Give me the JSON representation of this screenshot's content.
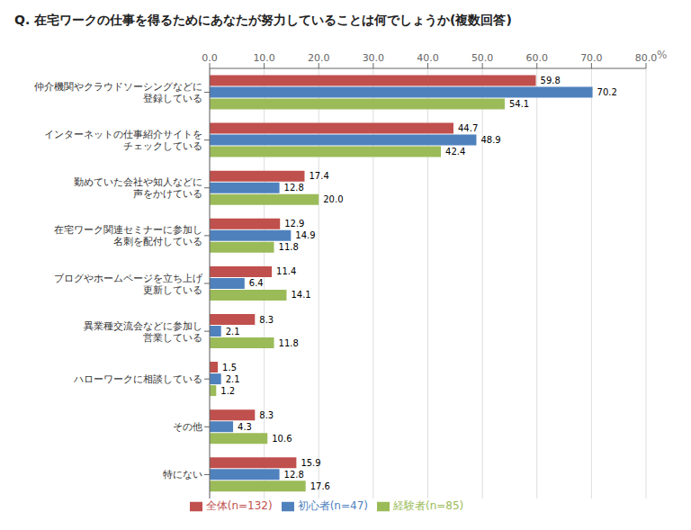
{
  "chart_data": {
    "type": "bar",
    "orientation": "horizontal",
    "title": "Q. 在宅ワークの仕事を得るためにあなたが努力していることは何でしょうか(複数回答)",
    "xlabel": "%",
    "categories": [
      "仲介機関やクラウドソーシングなどに\n登録している",
      "インターネットの仕事紹介サイトを\nチェックしている",
      "勤めていた会社や知人などに\n声をかけている",
      "在宅ワーク関連セミナーに参加し\n名刺を配付している",
      "ブログやホームページを立ち上げ\n更新している",
      "異業種交流会などに参加し\n営業している",
      "ハローワークに相談している",
      "その他",
      "特にない"
    ],
    "series": [
      {
        "name": "全体(n=132)",
        "color": "#c0504d",
        "values": [
          59.8,
          44.7,
          17.4,
          12.9,
          11.4,
          8.3,
          1.5,
          8.3,
          15.9
        ],
        "value_labels": [
          "59.8",
          "44.7",
          "17.4",
          "12.9",
          "11.4",
          "8.3",
          "1.5",
          "8.3",
          "15.9"
        ]
      },
      {
        "name": "初心者(n=47)",
        "color": "#4f81bd",
        "values": [
          70.2,
          48.9,
          12.8,
          14.9,
          6.4,
          2.1,
          2.1,
          4.3,
          12.8
        ],
        "value_labels": [
          "70.2",
          "48.9",
          "12.8",
          "14.9",
          "6.4",
          "2.1",
          "2.1",
          "4.3",
          "12.8"
        ]
      },
      {
        "name": "経験者(n=85)",
        "color": "#9bbb59",
        "values": [
          54.1,
          42.4,
          20.0,
          11.8,
          14.1,
          11.8,
          1.2,
          10.6,
          17.6
        ],
        "value_labels": [
          "54.1",
          "42.4",
          "20.0",
          "11.8",
          "14.1",
          "11.8",
          "1.2",
          "10.6",
          "17.6"
        ]
      }
    ],
    "xlim": [
      0,
      80
    ],
    "xticks": [
      {
        "value": 0,
        "label": "0.0"
      },
      {
        "value": 10,
        "label": "10.0"
      },
      {
        "value": 20,
        "label": "20.0"
      },
      {
        "value": 30,
        "label": "30.0"
      },
      {
        "value": 40,
        "label": "40.0"
      },
      {
        "value": 50,
        "label": "50.0"
      },
      {
        "value": 60,
        "label": "60.0"
      },
      {
        "value": 70,
        "label": "70.0"
      },
      {
        "value": 80,
        "label": "80.0"
      }
    ],
    "grid": true,
    "data_labels": true,
    "legend": "bottom"
  }
}
